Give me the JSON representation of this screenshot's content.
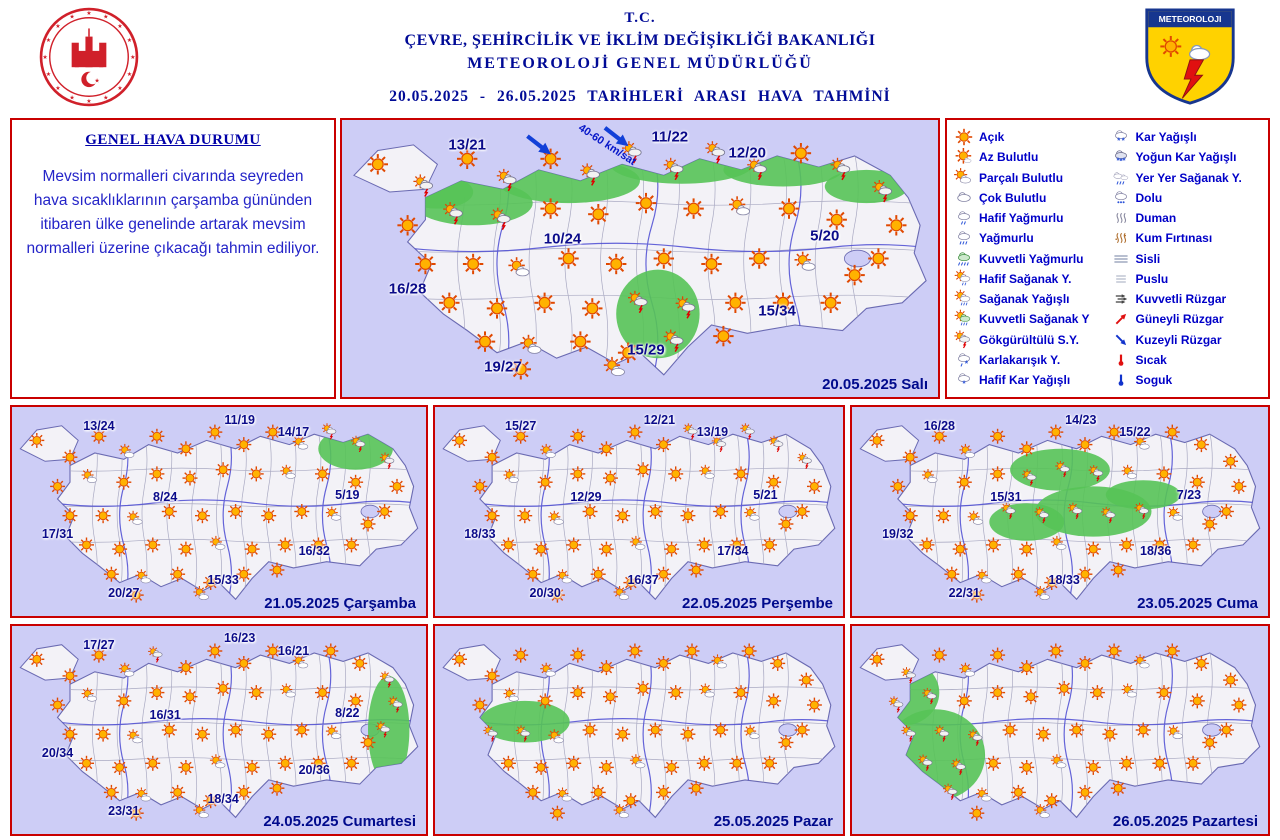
{
  "header": {
    "tc": "T.C.",
    "ministry": "ÇEVRE, ŞEHİRCİLİK VE İKLİM DEĞİŞİKLİĞİ BAKANLIĞI",
    "directorate": "METEOROLOJİ GENEL MÜDÜRLÜĞÜ",
    "date_range": "20.05.2025 - 26.05.2025 TARİHLERİ ARASI HAVA TAHMİNİ",
    "logo_text": "METEOROLOJI"
  },
  "overview": {
    "title": "GENEL HAVA DURUMU",
    "body": "Mevsim normalleri civarında seyreden hava sıcaklıklarının çarşamba gününden itibaren ülke genelinde artarak mevsim normalleri üzerine çıkacağı tahmin ediliyor."
  },
  "legend": {
    "column1": [
      {
        "icon": "sun",
        "label": "Açık"
      },
      {
        "icon": "sun-small-cloud",
        "label": "Az Bulutlu"
      },
      {
        "icon": "sun-cloud",
        "label": "Parçalı Bulutlu"
      },
      {
        "icon": "cloud",
        "label": "Çok Bulutlu"
      },
      {
        "icon": "light-rain",
        "label": "Hafif Yağmurlu"
      },
      {
        "icon": "rain",
        "label": "Yağmurlu"
      },
      {
        "icon": "heavy-rain",
        "label": "Kuvvetli Yağmurlu"
      },
      {
        "icon": "light-shower",
        "label": "Hafif Sağanak Y."
      },
      {
        "icon": "shower",
        "label": "Sağanak Yağışlı"
      },
      {
        "icon": "heavy-shower",
        "label": "Kuvvetli Sağanak Y"
      },
      {
        "icon": "thunderstorm",
        "label": "Gökgürültülü S.Y."
      },
      {
        "icon": "sleet",
        "label": "Karlakarışık Y."
      },
      {
        "icon": "light-snow",
        "label": "Hafif Kar Yağışlı"
      }
    ],
    "column2": [
      {
        "icon": "snow",
        "label": "Kar Yağışlı"
      },
      {
        "icon": "heavy-snow",
        "label": "Yoğun Kar Yağışlı"
      },
      {
        "icon": "scattered-shower",
        "label": "Yer Yer Sağanak Y."
      },
      {
        "icon": "hail",
        "label": "Dolu"
      },
      {
        "icon": "smoke",
        "label": "Duman"
      },
      {
        "icon": "sandstorm",
        "label": "Kum Fırtınası"
      },
      {
        "icon": "fog",
        "label": "Sisli"
      },
      {
        "icon": "haze",
        "label": "Puslu"
      },
      {
        "icon": "strong-wind",
        "label": "Kuvvetli Rüzgar"
      },
      {
        "icon": "south-wind",
        "label": "Güneyli Rüzgar"
      },
      {
        "icon": "north-wind",
        "label": "Kuzeyli Rüzgar"
      },
      {
        "icon": "hot",
        "label": "Sıcak"
      },
      {
        "icon": "cold",
        "label": "Soguk"
      }
    ]
  },
  "maps": [
    {
      "date_label": "20.05.2025 Salı",
      "wind_note": "40-60 km/sat",
      "temps": {
        "nw": "13/21",
        "n": "11/22",
        "ne": "12/20",
        "c": "10/24",
        "e": "5/20",
        "w": "16/28",
        "se": "15/34",
        "s": "15/29",
        "sw": "19/27"
      },
      "rain_areas": [
        [
          16,
          26,
          6,
          6
        ],
        [
          22,
          30,
          10,
          8
        ],
        [
          38,
          22,
          12,
          8
        ],
        [
          57,
          16,
          12,
          7
        ],
        [
          74,
          18,
          10,
          6
        ],
        [
          88,
          24,
          7,
          6
        ],
        [
          53,
          70,
          7,
          16
        ]
      ],
      "storm_points": []
    },
    {
      "date_label": "21.05.2025 Çarşamba",
      "temps": {
        "nw": "13/24",
        "n": "11/19",
        "ne": "14/17",
        "c": "8/24",
        "e": "5/19",
        "w": "17/31",
        "se": "16/32",
        "s": "15/33",
        "sw": "20/27"
      },
      "rain_areas": [
        [
          83,
          20,
          9,
          10
        ]
      ],
      "storm_points": [
        [
          76,
          14
        ],
        [
          90,
          24
        ]
      ]
    },
    {
      "date_label": "22.05.2025 Perşembe",
      "temps": {
        "nw": "15/27",
        "n": "12/21",
        "ne": "13/19",
        "c": "12/29",
        "e": "5/21",
        "w": "18/33",
        "se": "17/34",
        "s": "16/37",
        "sw": "20/30"
      },
      "rain_areas": [],
      "storm_points": [
        [
          58,
          10
        ],
        [
          68,
          16
        ],
        [
          78,
          12
        ],
        [
          88,
          22
        ]
      ]
    },
    {
      "date_label": "23.05.2025 Cuma",
      "temps": {
        "nw": "16/28",
        "n": "14/23",
        "ne": "15/22",
        "c": "15/31",
        "e": "7/23",
        "w": "19/32",
        "se": "18/36",
        "s": "18/33",
        "sw": "22/31"
      },
      "rain_areas": [
        [
          50,
          30,
          12,
          10
        ],
        [
          58,
          50,
          14,
          12
        ],
        [
          42,
          55,
          9,
          9
        ],
        [
          70,
          42,
          9,
          7
        ]
      ],
      "storm_points": []
    },
    {
      "date_label": "24.05.2025 Cumartesi",
      "temps": {
        "nw": "17/27",
        "n": "16/23",
        "ne": "16/21",
        "c": "16/31",
        "e": "8/22",
        "w": "20/34",
        "se": "20/36",
        "s": "18/34",
        "sw": "23/31"
      },
      "rain_areas": [
        [
          30,
          10,
          14,
          5
        ],
        [
          91,
          50,
          5,
          26
        ]
      ],
      "storm_points": []
    },
    {
      "date_label": "25.05.2025 Pazar",
      "temps": {},
      "rain_areas": [
        [
          22,
          46,
          11,
          10
        ]
      ],
      "storm_points": []
    },
    {
      "date_label": "26.05.2025 Pazartesi",
      "temps": {},
      "rain_areas": [
        [
          12,
          32,
          9,
          16
        ],
        [
          20,
          62,
          12,
          22
        ],
        [
          9,
          76,
          6,
          9
        ]
      ],
      "storm_points": []
    }
  ]
}
